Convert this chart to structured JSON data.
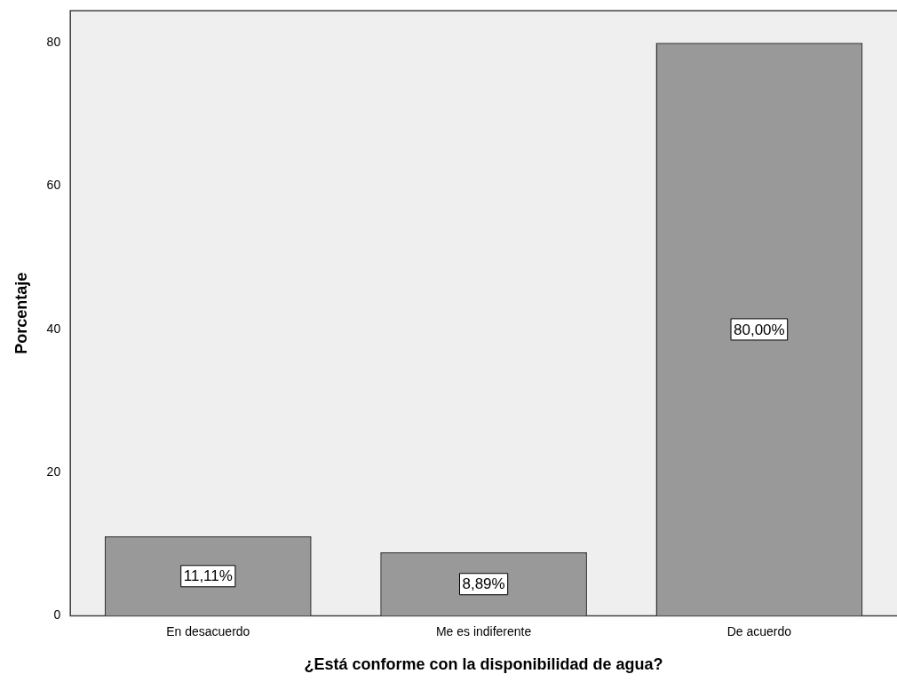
{
  "chart_data": {
    "type": "bar",
    "xlabel": "¿Está conforme con la disponibilidad de agua?",
    "ylabel": "Porcentaje",
    "categories": [
      "En desacuerdo",
      "Me es indiferente",
      "De acuerdo"
    ],
    "values": [
      11.11,
      8.89,
      80.0
    ],
    "value_labels": [
      "11,11%",
      "8,89%",
      "80,00%"
    ],
    "color": "#999999",
    "ylim": [
      0,
      84.5
    ],
    "yticks": [
      0,
      20,
      40,
      60,
      80
    ],
    "grid": false,
    "legend": false
  }
}
